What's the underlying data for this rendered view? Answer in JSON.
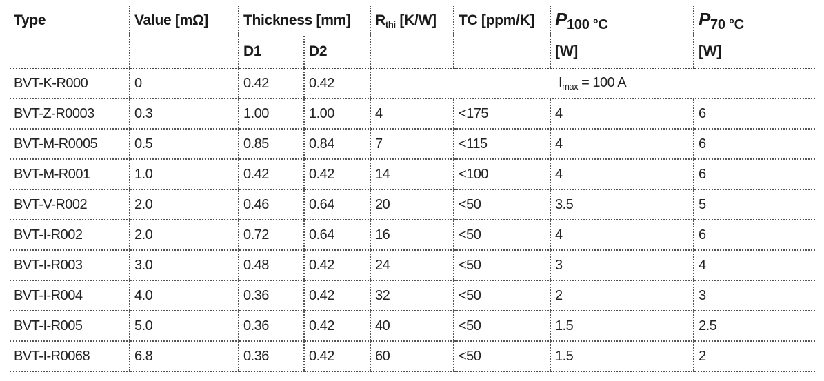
{
  "header": {
    "type": "Type",
    "value": "Value [mΩ]",
    "thickness": "Thickness  [mm]",
    "d1": "D1",
    "d2": "D2",
    "rth_symbol": "R",
    "rth_sub": "thi",
    "rth_unit": " [K/W]",
    "tc": "TC [ppm/K]",
    "p100_symbol": "P",
    "p100_sub": "100 °C",
    "p100_unit": "[W]",
    "p70_symbol": "P",
    "p70_sub": "70 °C",
    "p70_unit": "[W]"
  },
  "first_row": {
    "type": "BVT-K-R000",
    "value": "0",
    "d1": "0.42",
    "d2": "0.42",
    "imax_symbol": "I",
    "imax_sub": "max",
    "imax_text": " = 100 A"
  },
  "rows": [
    {
      "type": "BVT-Z-R0003",
      "value": "0.3",
      "d1": "1.00",
      "d2": "1.00",
      "rth": "4",
      "tc": "<175",
      "p100": "4",
      "p70": "6"
    },
    {
      "type": "BVT-M-R0005",
      "value": "0.5",
      "d1": "0.85",
      "d2": "0.84",
      "rth": "7",
      "tc": "<115",
      "p100": "4",
      "p70": "6"
    },
    {
      "type": "BVT-M-R001",
      "value": "1.0",
      "d1": "0.42",
      "d2": "0.42",
      "rth": "14",
      "tc": "<100",
      "p100": "4",
      "p70": "6"
    },
    {
      "type": "BVT-V-R002",
      "value": "2.0",
      "d1": "0.46",
      "d2": "0.64",
      "rth": "20",
      "tc": "<50",
      "p100": "3.5",
      "p70": "5"
    },
    {
      "type": "BVT-I-R002",
      "value": "2.0",
      "d1": "0.72",
      "d2": "0.64",
      "rth": "16",
      "tc": "<50",
      "p100": "4",
      "p70": "6"
    },
    {
      "type": "BVT-I-R003",
      "value": "3.0",
      "d1": "0.48",
      "d2": "0.42",
      "rth": "24",
      "tc": "<50",
      "p100": "3",
      "p70": "4"
    },
    {
      "type": "BVT-I-R004",
      "value": "4.0",
      "d1": "0.36",
      "d2": "0.42",
      "rth": "32",
      "tc": "<50",
      "p100": "2",
      "p70": "3"
    },
    {
      "type": "BVT-I-R005",
      "value": "5.0",
      "d1": "0.36",
      "d2": "0.42",
      "rth": "40",
      "tc": "<50",
      "p100": "1.5",
      "p70": "2.5"
    },
    {
      "type": "BVT-I-R0068",
      "value": "6.8",
      "d1": "0.36",
      "d2": "0.42",
      "rth": "60",
      "tc": "<50",
      "p100": "1.5",
      "p70": "2"
    }
  ]
}
